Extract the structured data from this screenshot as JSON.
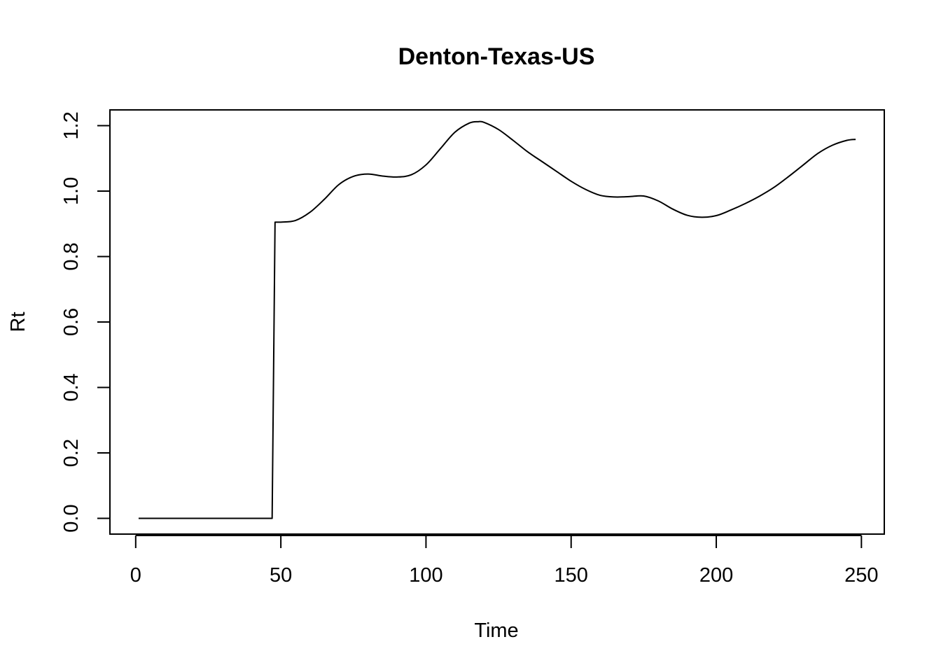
{
  "chart_data": {
    "type": "line",
    "title": "Denton-Texas-US",
    "xlabel": "Time",
    "ylabel": "Rt",
    "xlim": [
      1,
      248
    ],
    "ylim": [
      0,
      1.2
    ],
    "xticks": [
      0,
      50,
      100,
      150,
      200,
      250
    ],
    "yticks": [
      0.0,
      0.2,
      0.4,
      0.6,
      0.8,
      1.0,
      1.2
    ],
    "ytick_labels": [
      "0.0",
      "0.2",
      "0.4",
      "0.6",
      "0.8",
      "1.0",
      "1.2"
    ],
    "grid": false,
    "series": [
      {
        "name": "Rt",
        "x": [
          1,
          47,
          48,
          50,
          55,
          60,
          65,
          70,
          75,
          80,
          85,
          90,
          95,
          100,
          105,
          110,
          115,
          118,
          120,
          125,
          130,
          135,
          140,
          145,
          150,
          155,
          160,
          165,
          170,
          175,
          180,
          185,
          190,
          195,
          200,
          205,
          210,
          215,
          220,
          225,
          230,
          235,
          240,
          245,
          248
        ],
        "y": [
          0.0,
          0.0,
          0.905,
          0.905,
          0.91,
          0.935,
          0.975,
          1.02,
          1.045,
          1.052,
          1.046,
          1.043,
          1.05,
          1.08,
          1.13,
          1.18,
          1.208,
          1.212,
          1.21,
          1.188,
          1.155,
          1.12,
          1.09,
          1.06,
          1.03,
          1.005,
          0.987,
          0.982,
          0.983,
          0.985,
          0.97,
          0.945,
          0.926,
          0.92,
          0.925,
          0.942,
          0.962,
          0.985,
          1.012,
          1.045,
          1.08,
          1.115,
          1.14,
          1.155,
          1.158
        ]
      }
    ]
  }
}
